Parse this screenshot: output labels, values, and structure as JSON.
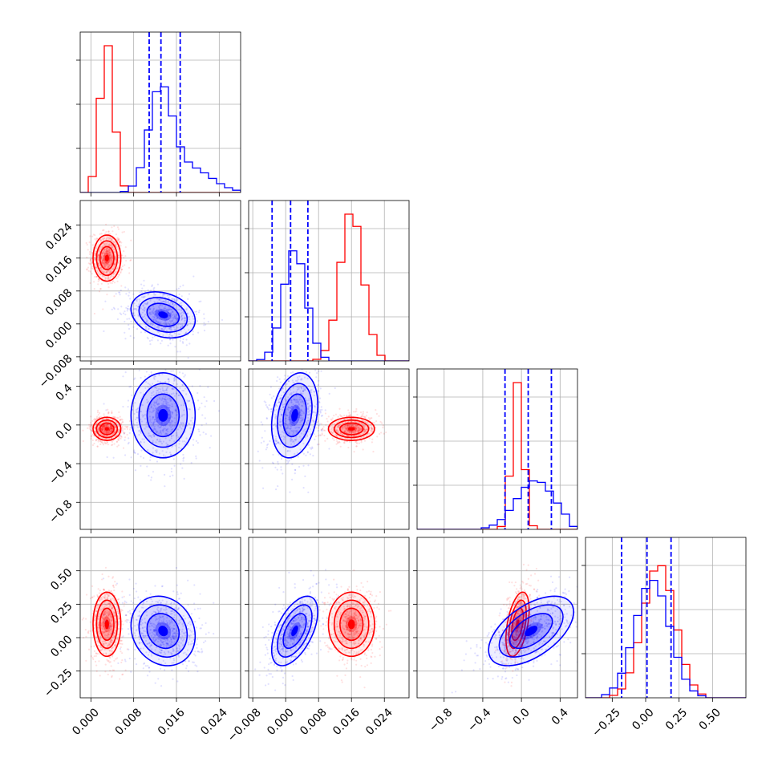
{
  "chart_data": {
    "type": "scatter",
    "kind": "corner-plot",
    "grid": true,
    "colors": {
      "red": "#ff0000",
      "blue": "#0000ff",
      "grid": "#b0b0b0",
      "axes": "#000000"
    },
    "parameters": [
      {
        "range": [
          -0.002,
          0.028
        ],
        "ticks": [
          "0.000",
          "0.008",
          "0.016",
          "0.024"
        ],
        "tick_values": [
          0.0,
          0.008,
          0.016,
          0.024
        ]
      },
      {
        "range": [
          -0.009,
          0.03
        ],
        "ticks": [
          "−0.008",
          "0.000",
          "0.008",
          "0.016",
          "0.024"
        ],
        "tick_values": [
          -0.008,
          0.0,
          0.008,
          0.016,
          0.024
        ]
      },
      {
        "range": [
          -1.08,
          0.58
        ],
        "ticks": [
          "−0.8",
          "−0.4",
          "0.0",
          "0.4"
        ],
        "tick_values": [
          -0.8,
          -0.4,
          0.0,
          0.4
        ]
      },
      {
        "range": [
          -0.45,
          0.75
        ],
        "ticks": [
          "−0.25",
          "0.00",
          "0.25",
          "0.50"
        ],
        "tick_values": [
          -0.25,
          0.0,
          0.25,
          0.5
        ]
      }
    ],
    "quantiles": [
      {
        "param": 0,
        "values": [
          0.0109,
          0.0131,
          0.0167
        ]
      },
      {
        "param": 1,
        "values": [
          -0.0033,
          0.0012,
          0.0054
        ]
      },
      {
        "param": 2,
        "values": [
          -0.17,
          0.07,
          0.31
        ]
      },
      {
        "param": 3,
        "values": [
          -0.18,
          0.01,
          0.19
        ]
      }
    ],
    "series": [
      {
        "color": "red",
        "centers": [
          0.003,
          0.016,
          -0.04,
          0.1
        ],
        "spreads": [
          0.0013,
          0.0028,
          0.06,
          0.12
        ],
        "peaks": [
          1.0,
          1.0,
          1.0,
          0.9
        ]
      },
      {
        "color": "blue",
        "centers": [
          0.0135,
          0.0022,
          0.1,
          0.05
        ],
        "spreads": [
          0.003,
          0.0028,
          0.22,
          0.13
        ],
        "peaks": [
          0.72,
          0.75,
          0.33,
          0.8
        ]
      }
    ]
  }
}
